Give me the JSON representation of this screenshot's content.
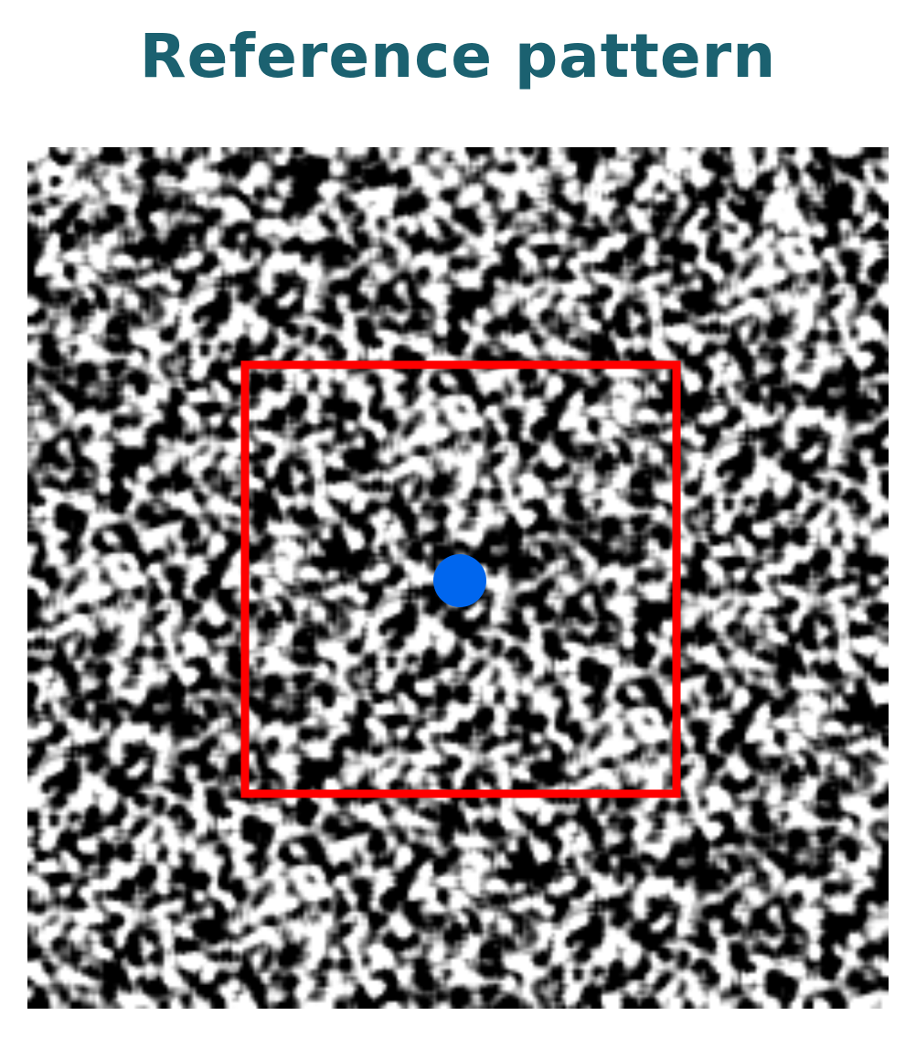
{
  "title": "Reference pattern",
  "colors": {
    "title": "#1b6170",
    "window": "#ff0000",
    "marker": "#0066ee",
    "background": "#ffffff"
  },
  "pattern": {
    "kind": "random speckle",
    "palette": "grayscale"
  },
  "annotations": {
    "window": "square outline",
    "marker": "circle at window centre"
  }
}
